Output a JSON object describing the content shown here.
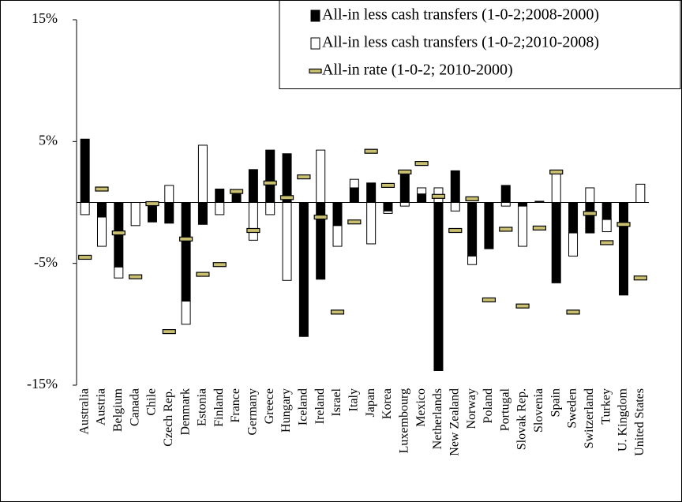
{
  "chart_data": {
    "type": "bar",
    "categories": [
      "Australia",
      "Austria",
      "Belgium",
      "Canada",
      "Chile",
      "Czech Rep.",
      "Denmark",
      "Estonia",
      "Finland",
      "France",
      "Germany",
      "Greece",
      "Hungary",
      "Iceland",
      "Ireland",
      "Israel",
      "Italy",
      "Japan",
      "Korea",
      "Luxembourg",
      "Mexico",
      "Netherlands",
      "New Zealand",
      "Norway",
      "Poland",
      "Portugal",
      "Slovak Rep.",
      "Slovenia",
      "Spain",
      "Sweden",
      "Switzerland",
      "Turkey",
      "U. Kingdom",
      "United States"
    ],
    "series": [
      {
        "name": "All-in less cash transfers (1-0-2;2008-2000)",
        "color": "#000000",
        "values": [
          5.2,
          -1.2,
          -5.3,
          0,
          -1.6,
          -1.7,
          -8.1,
          -1.8,
          1.1,
          0.8,
          2.7,
          4.3,
          4.0,
          -11.0,
          -6.3,
          -1.9,
          1.2,
          1.6,
          -0.7,
          2.6,
          0.7,
          -13.8,
          2.6,
          -4.4,
          -3.8,
          1.4,
          -0.3,
          0.1,
          -6.6,
          -2.5,
          -2.5,
          -1.4,
          -7.6,
          0
        ]
      },
      {
        "name": "All-in less cash transfers (1-0-2;2010-2008)",
        "color": "#ffffff",
        "values": [
          -1.0,
          -2.4,
          -0.9,
          -1.9,
          0,
          1.4,
          -1.9,
          4.7,
          -1.0,
          0,
          -3.1,
          -1.0,
          -6.4,
          0,
          4.3,
          -1.7,
          0.7,
          -3.4,
          -0.2,
          -0.3,
          0.5,
          1.2,
          -0.7,
          -0.7,
          0,
          -0.3,
          -3.3,
          0,
          2.6,
          -1.9,
          1.2,
          -1.0,
          0,
          1.5
        ]
      },
      {
        "name": "All-in rate (1-0-2; 2010-2000)",
        "color": "#c8c070",
        "values": [
          -4.5,
          1.1,
          -2.5,
          -6.1,
          -0.1,
          -10.6,
          -3.0,
          -5.9,
          -5.1,
          0.9,
          -2.3,
          1.6,
          0.4,
          2.1,
          -1.2,
          -9.0,
          -1.6,
          4.2,
          1.4,
          2.5,
          3.2,
          0.5,
          -2.3,
          0.3,
          -8.0,
          -2.2,
          -8.5,
          -2.1,
          2.5,
          -9.0,
          -0.9,
          -3.3,
          -1.8,
          -6.2
        ]
      }
    ],
    "ylim": [
      -15,
      15
    ],
    "yticks": [
      {
        "value": 15,
        "label": "15%"
      },
      {
        "value": 5,
        "label": "5%"
      },
      {
        "value": -5,
        "label": "-5%"
      },
      {
        "value": -15,
        "label": "-15%"
      }
    ],
    "legend": "upper right"
  }
}
